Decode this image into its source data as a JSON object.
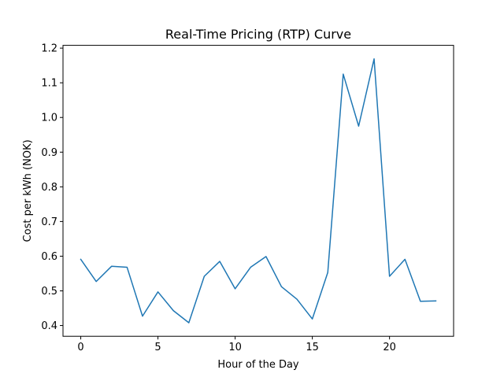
{
  "chart_data": {
    "type": "line",
    "title": "Real-Time Pricing (RTP) Curve",
    "xlabel": "Hour of the Day",
    "ylabel": "Cost per kWh (NOK)",
    "xlim": [
      -1.15,
      24.15
    ],
    "ylim": [
      0.369,
      1.208
    ],
    "xticks": [
      0,
      5,
      10,
      15,
      20
    ],
    "xtick_labels": [
      "0",
      "5",
      "10",
      "15",
      "20"
    ],
    "yticks": [
      0.4,
      0.5,
      0.6,
      0.7,
      0.8,
      0.9,
      1.0,
      1.1,
      1.2
    ],
    "ytick_labels": [
      "0.4",
      "0.5",
      "0.6",
      "0.7",
      "0.8",
      "0.9",
      "1.0",
      "1.1",
      "1.2"
    ],
    "grid": false,
    "legend": "none",
    "series": [
      {
        "color": "#1f77b4",
        "x": [
          0,
          1,
          2,
          3,
          4,
          5,
          6,
          7,
          8,
          9,
          10,
          11,
          12,
          13,
          14,
          15,
          16,
          17,
          18,
          19,
          20,
          21,
          22,
          23
        ],
        "y": [
          0.591,
          0.527,
          0.571,
          0.568,
          0.427,
          0.497,
          0.443,
          0.408,
          0.542,
          0.585,
          0.506,
          0.568,
          0.599,
          0.512,
          0.476,
          0.419,
          0.553,
          1.125,
          0.975,
          1.169,
          0.542,
          0.591,
          0.47,
          0.471
        ]
      }
    ]
  }
}
